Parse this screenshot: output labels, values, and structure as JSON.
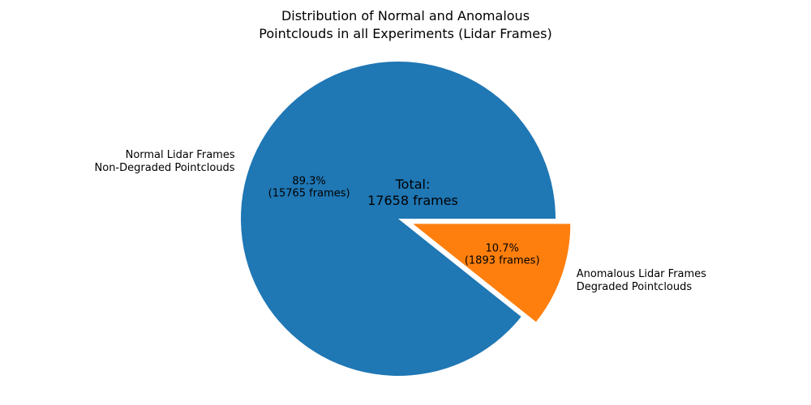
{
  "chart_data": {
    "type": "pie",
    "title": "Distribution of Normal and Anomalous\nPointclouds in all Experiments (Lidar Frames)",
    "total_annotation": "Total:\n17658 frames",
    "total": 17658,
    "startangle": 0,
    "counterclock": true,
    "legend": false,
    "background_color": "#ffffff",
    "text_color": "#000000",
    "slices": [
      {
        "label": "Normal Lidar Frames\nNon-Degraded Pointclouds",
        "value": 15765,
        "pct": 89.3,
        "pct_label": "89.3%\n(15765 frames)",
        "color": "#1f77b4",
        "explode": 0
      },
      {
        "label": "Anomalous Lidar Frames\nDegraded Pointclouds",
        "value": 1893,
        "pct": 10.7,
        "pct_label": "10.7%\n(1893 frames)",
        "color": "#ff7f0e",
        "explode": 0.1
      }
    ]
  }
}
